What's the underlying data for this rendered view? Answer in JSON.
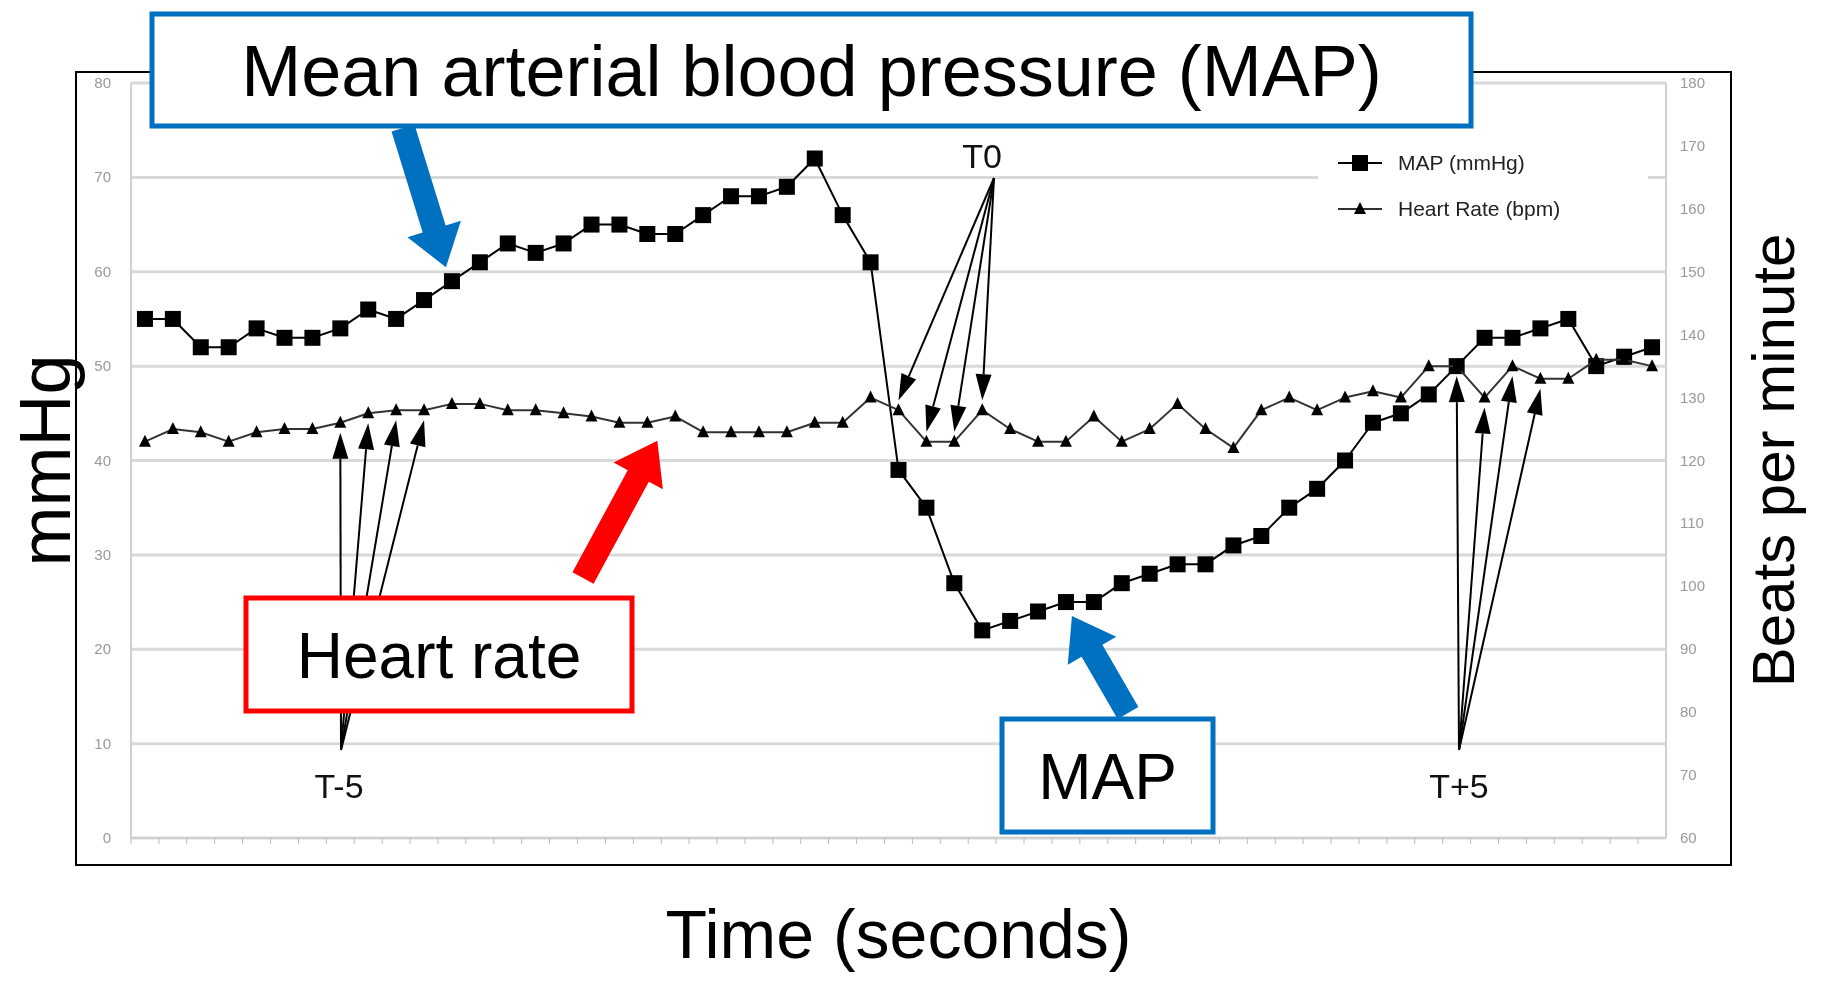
{
  "chart_data": {
    "type": "line",
    "xlabel": "Time (seconds)",
    "ylabel": "mmHg",
    "y2label": "Beats per minute",
    "categories": [
      null,
      null,
      null,
      null,
      null,
      null,
      null,
      null,
      null,
      null,
      null,
      null,
      null,
      null,
      null,
      null,
      null,
      null,
      null,
      null,
      null,
      null,
      null,
      null,
      null,
      null,
      null,
      null,
      null,
      null,
      null,
      null,
      null,
      null,
      null,
      null,
      null,
      null,
      null,
      null,
      null,
      null,
      null,
      null,
      null,
      null,
      null,
      null,
      null,
      null,
      null,
      null,
      null,
      null,
      null
    ],
    "ylim": [
      0,
      80
    ],
    "yticks": [
      0,
      10,
      20,
      30,
      40,
      50,
      60,
      70,
      80
    ],
    "y2lim": [
      60,
      180
    ],
    "y2ticks": [
      60,
      70,
      80,
      90,
      100,
      110,
      120,
      130,
      140,
      150,
      160,
      170,
      180
    ],
    "grid": "y",
    "legend": "top right",
    "tick_labels": "y",
    "series": [
      {
        "name": "MAP (mmHg)",
        "color": "#000000",
        "marker": "square",
        "values": [
          55,
          55,
          52,
          52,
          54,
          53,
          53,
          54,
          56,
          55,
          57,
          59,
          61,
          63,
          62,
          63,
          65,
          65,
          64,
          64,
          66,
          68,
          68,
          69,
          72,
          66,
          61,
          39,
          35,
          27,
          22,
          23,
          24,
          25,
          25,
          27,
          28,
          29,
          29,
          31,
          32,
          35,
          37,
          40,
          44,
          45,
          47,
          50,
          53,
          53,
          54,
          55,
          50,
          51,
          52
        ]
      },
      {
        "name": "Heart Rate (bpm)",
        "color": "#333333",
        "marker": "triangle",
        "axis": "y2",
        "values": [
          123,
          125,
          124.5,
          123,
          124.5,
          125,
          125,
          126,
          127.5,
          128,
          128,
          129,
          129,
          128,
          128,
          127.5,
          127,
          126,
          126,
          127,
          124.5,
          124.5,
          124.5,
          124.5,
          126,
          126,
          130,
          128,
          123,
          123,
          128,
          125,
          123,
          123,
          127,
          123,
          125,
          129,
          125,
          122,
          128,
          130,
          128,
          130,
          131,
          130,
          135,
          135,
          130,
          135,
          133,
          133,
          136,
          136,
          135
        ]
      }
    ],
    "annotations": [
      "Mean arterial blood pressure (MAP)",
      "Heart rate",
      "MAP",
      "T0",
      "T-5",
      "T+5"
    ]
  }
}
